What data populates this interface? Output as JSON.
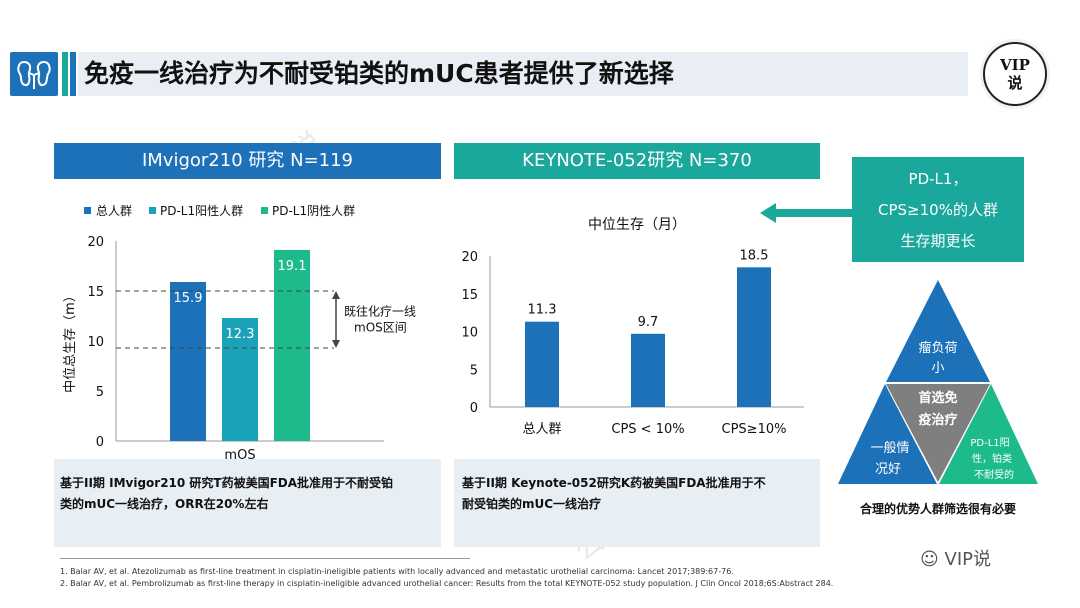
{
  "header": {
    "title": "免疫一线治疗为不耐受铂类的mUC患者提供了新选择",
    "badge_line1": "VIP",
    "badge_line2": "说"
  },
  "left_panel": {
    "heading": "IMvigor210 研究   N=119",
    "note_line1": "基于II期 IMvigor210 研究T药被美国FDA批准用于不耐受铂",
    "note_line2": "类的mUC一线治疗，ORR在20%左右"
  },
  "mid_panel": {
    "heading": "KEYNOTE-052研究 N=370",
    "note_line1": "基于II期 Keynote-052研究K药被美国FDA批准用于不",
    "note_line2": "耐受铂类的mUC一线治疗"
  },
  "callout": {
    "line1": "PD-L1，",
    "line2": "CPS≥10%的人群",
    "line3": "生存期更长"
  },
  "triangle": {
    "top_line1": "瘤负荷",
    "top_line2": "小",
    "center_line1": "首选免",
    "center_line2": "疫治疗",
    "left_line1": "一般情",
    "left_line2": "况好",
    "right_line1": "PD-L1阳",
    "right_line2": "性，铂类",
    "right_line3": "不耐受的",
    "caption": "合理的优势人群筛选很有必要"
  },
  "references": {
    "ref1": "1. Balar AV, et al. Atezolizumab as first-line treatment in cisplatin-ineligible patients with locally advanced and metastatic urothelial carcinoma: Lancet 2017;389:67-76.",
    "ref2": "2. Balar AV, et al. Pembrolizumab as first-line therapy in cisplatin-ineligible advanced urothelial cancer: Results from the total KEYNOTE-052 study population. J Clin Oncol 2018;6S:Abstract 284."
  },
  "watermark": {
    "text": "公众号：VIP说",
    "bottom": "VIP说"
  },
  "colors": {
    "blue": "#1d71b8",
    "teal": "#1aa79c",
    "green": "#1dba8c",
    "gray": "#7f7f7f"
  },
  "chart_data": [
    {
      "type": "bar",
      "title": "",
      "xlabel": "mOS",
      "ylabel": "中位总生存（m）",
      "ylim": [
        0,
        20
      ],
      "yticks": [
        0,
        5,
        10,
        15,
        20
      ],
      "categories": [
        "mOS"
      ],
      "series": [
        {
          "name": "总人群",
          "values": [
            15.9
          ],
          "color": "#1d71b8"
        },
        {
          "name": "PD-L1阳性人群",
          "values": [
            12.3
          ],
          "color": "#1aa3b8"
        },
        {
          "name": "PD-L1阴性人群",
          "values": [
            19.1
          ],
          "color": "#1dba8c"
        }
      ],
      "data_labels": [
        "15.9",
        "12.3",
        "19.1"
      ],
      "reference_range": {
        "low": 9.3,
        "high": 15.0,
        "label_line1": "既往化疗一线",
        "label_line2": "mOS区间"
      },
      "legend": "top"
    },
    {
      "type": "bar",
      "title": "中位生存（月）",
      "xlabel": "",
      "ylabel": "",
      "ylim": [
        0,
        20
      ],
      "yticks": [
        0,
        5,
        10,
        15,
        20
      ],
      "categories": [
        "总人群",
        "CPS < 10%",
        "CPS≥10%"
      ],
      "values": [
        11.3,
        9.7,
        18.5
      ],
      "data_labels": [
        "11.3",
        "9.7",
        "18.5"
      ],
      "color": "#1d71b8"
    }
  ]
}
